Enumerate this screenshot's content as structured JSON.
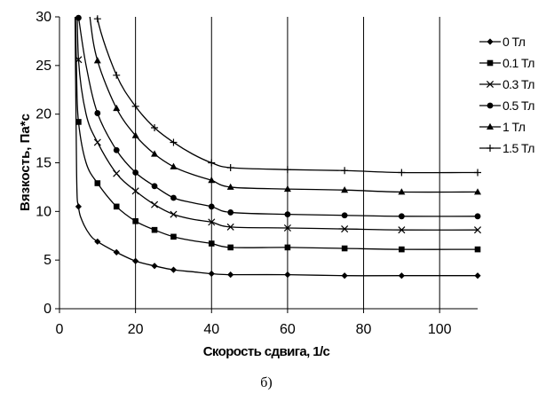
{
  "chart_data": {
    "type": "line",
    "xlabel": "Скорость сдвига, 1/с",
    "ylabel": "Вязкость, Па*с",
    "caption": "б)",
    "xlim": [
      0,
      110
    ],
    "ylim": [
      0,
      30
    ],
    "xticks": [
      0,
      20,
      40,
      60,
      80,
      100
    ],
    "yticks": [
      0,
      5,
      10,
      15,
      20,
      25,
      30
    ],
    "grid": "vertical",
    "legend_position": "right",
    "series": [
      {
        "name": "0 Тл",
        "marker": "diamond",
        "curve": [
          [
            4,
            35
          ],
          [
            4.5,
            14
          ],
          [
            5,
            10.5
          ],
          [
            6,
            9
          ],
          [
            8,
            7.6
          ],
          [
            10,
            6.9
          ],
          [
            15,
            5.8
          ],
          [
            20,
            4.9
          ],
          [
            25,
            4.4
          ],
          [
            30,
            4.0
          ],
          [
            35,
            3.8
          ],
          [
            40,
            3.6
          ],
          [
            45,
            3.5
          ],
          [
            60,
            3.5
          ],
          [
            75,
            3.4
          ],
          [
            90,
            3.4
          ],
          [
            110,
            3.4
          ]
        ],
        "markers": [
          [
            5,
            10.5
          ],
          [
            10,
            6.9
          ],
          [
            15,
            5.8
          ],
          [
            20,
            4.9
          ],
          [
            25,
            4.4
          ],
          [
            30,
            4.0
          ],
          [
            40,
            3.6
          ],
          [
            45,
            3.5
          ],
          [
            60,
            3.5
          ],
          [
            75,
            3.4
          ],
          [
            90,
            3.4
          ],
          [
            110,
            3.4
          ]
        ]
      },
      {
        "name": "0.1 Тл",
        "marker": "square",
        "curve": [
          [
            4,
            35
          ],
          [
            4.5,
            24
          ],
          [
            5,
            19.2
          ],
          [
            7,
            15
          ],
          [
            10,
            12.9
          ],
          [
            15,
            10.5
          ],
          [
            20,
            9.0
          ],
          [
            25,
            8.1
          ],
          [
            30,
            7.4
          ],
          [
            35,
            7.0
          ],
          [
            40,
            6.7
          ],
          [
            45,
            6.3
          ],
          [
            60,
            6.3
          ],
          [
            75,
            6.2
          ],
          [
            90,
            6.1
          ],
          [
            110,
            6.1
          ]
        ],
        "markers": [
          [
            5,
            19.2
          ],
          [
            10,
            12.9
          ],
          [
            15,
            10.5
          ],
          [
            20,
            9.0
          ],
          [
            25,
            8.1
          ],
          [
            30,
            7.4
          ],
          [
            40,
            6.7
          ],
          [
            45,
            6.3
          ],
          [
            60,
            6.3
          ],
          [
            75,
            6.2
          ],
          [
            90,
            6.1
          ],
          [
            110,
            6.1
          ]
        ]
      },
      {
        "name": "0.3 Тл",
        "marker": "x",
        "curve": [
          [
            4.5,
            35
          ],
          [
            5,
            25.6
          ],
          [
            7,
            20
          ],
          [
            10,
            17.1
          ],
          [
            15,
            13.9
          ],
          [
            20,
            12.1
          ],
          [
            25,
            10.7
          ],
          [
            30,
            9.7
          ],
          [
            35,
            9.2
          ],
          [
            40,
            8.9
          ],
          [
            45,
            8.4
          ],
          [
            60,
            8.3
          ],
          [
            75,
            8.2
          ],
          [
            90,
            8.1
          ],
          [
            110,
            8.1
          ]
        ],
        "markers": [
          [
            5,
            25.6
          ],
          [
            10,
            17.1
          ],
          [
            15,
            13.9
          ],
          [
            20,
            12.1
          ],
          [
            25,
            10.7
          ],
          [
            30,
            9.7
          ],
          [
            40,
            8.9
          ],
          [
            45,
            8.4
          ],
          [
            60,
            8.3
          ],
          [
            75,
            8.2
          ],
          [
            90,
            8.1
          ],
          [
            110,
            8.1
          ]
        ]
      },
      {
        "name": "0.5 Тл",
        "marker": "circle",
        "curve": [
          [
            5,
            30
          ],
          [
            7,
            25
          ],
          [
            10,
            20.1
          ],
          [
            15,
            16.3
          ],
          [
            20,
            14.0
          ],
          [
            25,
            12.6
          ],
          [
            30,
            11.4
          ],
          [
            35,
            10.9
          ],
          [
            40,
            10.5
          ],
          [
            45,
            9.9
          ],
          [
            60,
            9.7
          ],
          [
            75,
            9.6
          ],
          [
            90,
            9.5
          ],
          [
            110,
            9.5
          ]
        ],
        "markers": [
          [
            5,
            29.9
          ],
          [
            10,
            20.1
          ],
          [
            15,
            16.3
          ],
          [
            20,
            14.0
          ],
          [
            25,
            12.6
          ],
          [
            30,
            11.4
          ],
          [
            40,
            10.5
          ],
          [
            45,
            9.9
          ],
          [
            60,
            9.7
          ],
          [
            75,
            9.6
          ],
          [
            90,
            9.5
          ],
          [
            110,
            9.5
          ]
        ]
      },
      {
        "name": "1 Тл",
        "marker": "triangle",
        "curve": [
          [
            7,
            35
          ],
          [
            8,
            30
          ],
          [
            10,
            25.5
          ],
          [
            15,
            20.6
          ],
          [
            20,
            17.8
          ],
          [
            25,
            15.9
          ],
          [
            30,
            14.6
          ],
          [
            35,
            13.8
          ],
          [
            40,
            13.2
          ],
          [
            45,
            12.5
          ],
          [
            60,
            12.3
          ],
          [
            75,
            12.2
          ],
          [
            90,
            12.0
          ],
          [
            110,
            12.0
          ]
        ],
        "markers": [
          [
            10,
            25.5
          ],
          [
            15,
            20.6
          ],
          [
            20,
            17.8
          ],
          [
            25,
            15.9
          ],
          [
            30,
            14.6
          ],
          [
            40,
            13.2
          ],
          [
            45,
            12.5
          ],
          [
            60,
            12.3
          ],
          [
            75,
            12.2
          ],
          [
            90,
            12.0
          ],
          [
            110,
            12.0
          ]
        ]
      },
      {
        "name": "1.5 Тл",
        "marker": "plus",
        "curve": [
          [
            9,
            35
          ],
          [
            10,
            29.8
          ],
          [
            15,
            24
          ],
          [
            20,
            20.8
          ],
          [
            25,
            18.6
          ],
          [
            30,
            17.1
          ],
          [
            35,
            15.9
          ],
          [
            40,
            15.0
          ],
          [
            45,
            14.5
          ],
          [
            60,
            14.3
          ],
          [
            75,
            14.2
          ],
          [
            90,
            14.0
          ],
          [
            110,
            14.0
          ]
        ],
        "markers": [
          [
            10,
            29.8
          ],
          [
            15,
            24.0
          ],
          [
            20,
            20.8
          ],
          [
            25,
            18.6
          ],
          [
            30,
            17.1
          ],
          [
            40,
            15.0
          ],
          [
            45,
            14.5
          ],
          [
            60,
            14.3
          ],
          [
            75,
            14.2
          ],
          [
            90,
            14.0
          ],
          [
            110,
            14.0
          ]
        ]
      }
    ]
  }
}
